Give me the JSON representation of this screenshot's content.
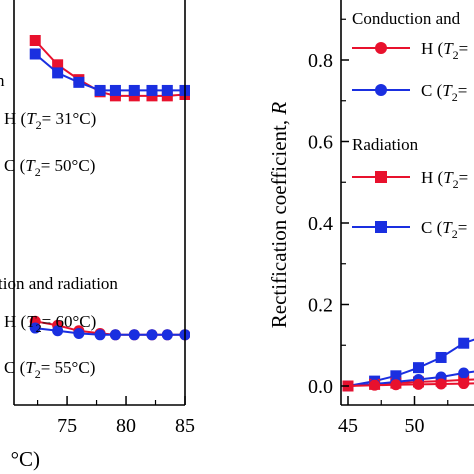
{
  "chart_data": [
    {
      "type": "line",
      "xlabel_fragment": "°C)",
      "xlim": [
        70.5,
        85
      ],
      "ylim": [
        -2,
        13
      ],
      "xticks": [
        75,
        80,
        85
      ],
      "annotations": [
        {
          "text": "n",
          "kind": "plain"
        },
        {
          "text": "H (",
          "t2": "= 31°C)",
          "kind": "legend",
          "marker": "none"
        },
        {
          "text": "C (",
          "t2": "= 50°C)",
          "kind": "legend",
          "marker": "none"
        },
        {
          "text": "tion and radiation",
          "kind": "plain"
        },
        {
          "text": "H (",
          "t2": "= 60°C)",
          "kind": "legend",
          "marker": "none"
        },
        {
          "text": "C (",
          "t2": "= 55°C)",
          "kind": "legend",
          "marker": "none"
        }
      ],
      "series": [
        {
          "color": "#e8112d",
          "marker": "square",
          "x": [
            72.3,
            74.2,
            76,
            77.8,
            79.1,
            80.7,
            82.2,
            83.5,
            85
          ],
          "y": [
            11.5,
            10.6,
            10.05,
            9.6,
            9.45,
            9.45,
            9.45,
            9.45,
            9.5
          ]
        },
        {
          "color": "#1a2fe0",
          "marker": "square",
          "x": [
            72.3,
            74.2,
            76,
            77.8,
            79.1,
            80.7,
            82.2,
            83.5,
            85
          ],
          "y": [
            11.0,
            10.3,
            9.95,
            9.65,
            9.65,
            9.65,
            9.65,
            9.65,
            9.65
          ]
        },
        {
          "color": "#e8112d",
          "marker": "circle",
          "x": [
            72.3,
            74.2,
            76,
            77.8,
            79.1,
            80.7,
            82.2,
            83.5,
            85
          ],
          "y": [
            1.1,
            0.95,
            0.75,
            0.65,
            0.6,
            0.6,
            0.6,
            0.6,
            0.6
          ]
        },
        {
          "color": "#1a2fe0",
          "marker": "circle",
          "x": [
            72.3,
            74.2,
            76,
            77.8,
            79.1,
            80.7,
            82.2,
            83.5,
            85
          ],
          "y": [
            0.85,
            0.75,
            0.65,
            0.6,
            0.6,
            0.6,
            0.6,
            0.6,
            0.6
          ]
        }
      ]
    },
    {
      "type": "line",
      "ylabel": "Rectification coefficient,",
      "ylabel_symbol": "R",
      "xlim": [
        45,
        56
      ],
      "ylim": [
        -0.04,
        1.0
      ],
      "xticks": [
        45,
        50
      ],
      "yticks": [
        0.0,
        0.2,
        0.4,
        0.6,
        0.8
      ],
      "ytick_labels": [
        "0.0",
        "0.2",
        "0.4",
        "0.6",
        "0.8"
      ],
      "legend": {
        "placement": "top-right",
        "groups": [
          {
            "title": "Conduction and",
            "entries": [
              {
                "label": "H (",
                "t2": "= ",
                "color": "#e8112d",
                "marker": "circle"
              },
              {
                "label": "C (",
                "t2": "= ",
                "color": "#1a2fe0",
                "marker": "circle"
              }
            ]
          },
          {
            "title": "Radiation",
            "entries": [
              {
                "label": "H (",
                "t2": "= ",
                "color": "#e8112d",
                "marker": "square"
              },
              {
                "label": "C (",
                "t2": "= ",
                "color": "#1a2fe0",
                "marker": "square"
              }
            ]
          }
        ]
      },
      "series": [
        {
          "color": "#1a2fe0",
          "marker": "square",
          "x": [
            45,
            47,
            48.6,
            50.3,
            52,
            53.7,
            55.5
          ],
          "y": [
            0.0,
            0.012,
            0.025,
            0.045,
            0.07,
            0.105,
            0.125
          ]
        },
        {
          "color": "#e8112d",
          "marker": "square",
          "x": [
            45,
            47,
            48.6,
            50.3,
            52,
            53.7,
            55.5
          ],
          "y": [
            0.0,
            0.004,
            0.007,
            0.01,
            0.012,
            0.015,
            0.017
          ]
        },
        {
          "color": "#1a2fe0",
          "marker": "circle",
          "x": [
            45,
            47,
            48.6,
            50.3,
            52,
            53.7,
            55.5
          ],
          "y": [
            0.0,
            0.005,
            0.01,
            0.016,
            0.022,
            0.032,
            0.04
          ]
        },
        {
          "color": "#e8112d",
          "marker": "circle",
          "x": [
            45,
            47,
            48.6,
            50.3,
            52,
            53.7,
            55.5
          ],
          "y": [
            0.0,
            0.002,
            0.003,
            0.004,
            0.005,
            0.006,
            0.007
          ]
        }
      ]
    }
  ]
}
